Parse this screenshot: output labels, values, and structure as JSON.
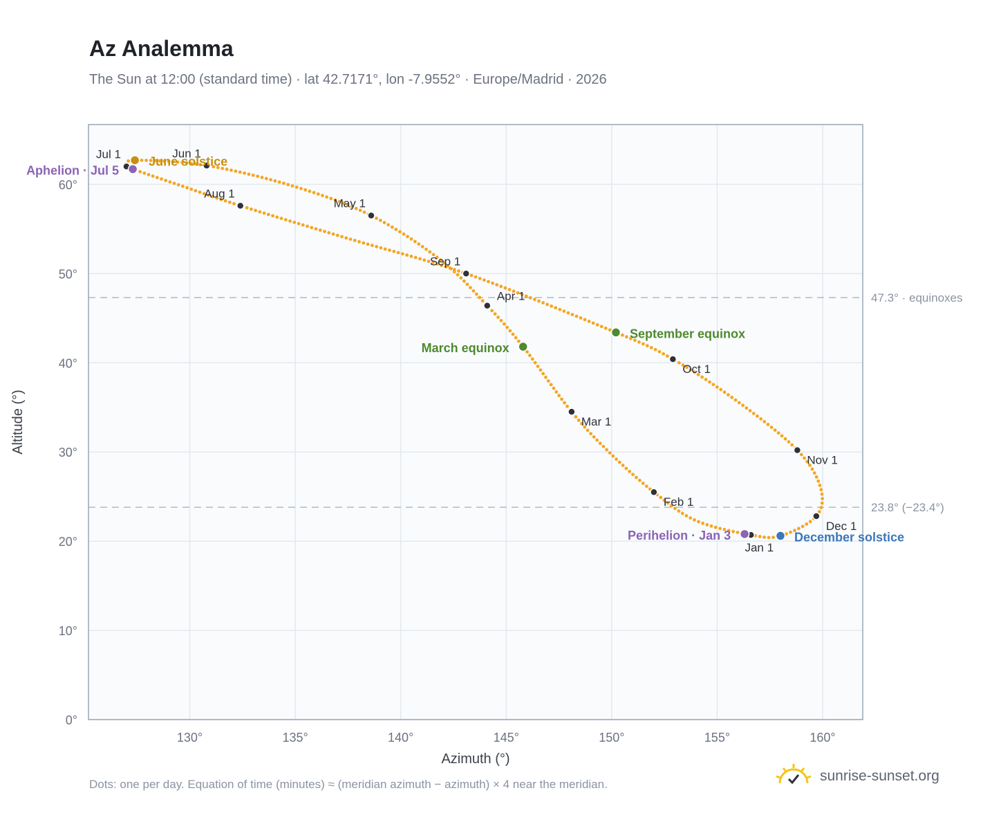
{
  "title": "Az Analemma",
  "subtitle": "The Sun at 12:00 (standard time) · lat 42.7171°, lon -7.9552° · Europe/Madrid · 2026",
  "footnote": "Dots: one per day. Equation of time (minutes) ≈ (meridian azimuth − azimuth) × 4 near the meridian.",
  "brand": {
    "name": "sunrise-sunset.org",
    "icon": "sun-logo-icon"
  },
  "colors": {
    "curve": "#f5a623",
    "month_marker": "#2d3138",
    "equinox": "#4e8a2f",
    "june_solstice": "#c8900e",
    "december_solstice": "#3a78b9",
    "apsis": "#8b64b4",
    "plot_bg": "#f9fbfd",
    "grid": "#e4e9ef",
    "reference_line": "#aebbc8"
  },
  "chart_data": {
    "type": "scatter",
    "title": "Az Analemma",
    "xlabel": "Azimuth (°)",
    "ylabel": "Altitude (°)",
    "xlim": [
      125.2,
      161.9
    ],
    "ylim": [
      0,
      66.7
    ],
    "x_ticks": [
      130,
      135,
      140,
      145,
      150,
      155,
      160
    ],
    "x_tick_labels": [
      "130°",
      "135°",
      "140°",
      "145°",
      "150°",
      "155°",
      "160°"
    ],
    "y_ticks": [
      0,
      10,
      20,
      30,
      40,
      50,
      60
    ],
    "y_tick_labels": [
      "0°",
      "10°",
      "20°",
      "30°",
      "40°",
      "50°",
      "60°"
    ],
    "grid": true,
    "series": [
      {
        "name": "",
        "marker": "one dot per day",
        "anchors": [
          {
            "date": "Jan 1",
            "az": 156.6,
            "alt": 20.7
          },
          {
            "date": "Jan 15",
            "az": 154.0,
            "alt": 22.3
          },
          {
            "date": "Feb 1",
            "az": 152.0,
            "alt": 25.5
          },
          {
            "date": "Feb 15",
            "az": 150.0,
            "alt": 29.7
          },
          {
            "date": "Mar 1",
            "az": 148.1,
            "alt": 34.5
          },
          {
            "date": "Mar 20",
            "az": 145.8,
            "alt": 41.8
          },
          {
            "date": "Apr 1",
            "az": 144.1,
            "alt": 46.4
          },
          {
            "date": "Apr 15",
            "az": 141.9,
            "alt": 51.5
          },
          {
            "date": "May 1",
            "az": 138.6,
            "alt": 56.5
          },
          {
            "date": "May 15",
            "az": 134.9,
            "alt": 59.8
          },
          {
            "date": "Jun 1",
            "az": 130.8,
            "alt": 62.1
          },
          {
            "date": "Jun 21",
            "az": 127.4,
            "alt": 62.7
          },
          {
            "date": "Jul 1",
            "az": 127.0,
            "alt": 62.0
          },
          {
            "date": "Jul 5",
            "az": 127.3,
            "alt": 61.7
          },
          {
            "date": "Jul 15",
            "az": 129.4,
            "alt": 60.0
          },
          {
            "date": "Aug 1",
            "az": 132.4,
            "alt": 57.6
          },
          {
            "date": "Aug 15",
            "az": 137.4,
            "alt": 54.0
          },
          {
            "date": "Sep 1",
            "az": 143.1,
            "alt": 50.0
          },
          {
            "date": "Sep 22",
            "az": 150.2,
            "alt": 43.4
          },
          {
            "date": "Oct 1",
            "az": 152.9,
            "alt": 40.4
          },
          {
            "date": "Oct 15",
            "az": 156.0,
            "alt": 35.6
          },
          {
            "date": "Nov 1",
            "az": 158.8,
            "alt": 30.2
          },
          {
            "date": "Nov 15",
            "az": 159.9,
            "alt": 26.0
          },
          {
            "date": "Dec 1",
            "az": 159.7,
            "alt": 22.8
          },
          {
            "date": "Dec 21",
            "az": 158.0,
            "alt": 20.6
          }
        ]
      }
    ],
    "month_markers": [
      {
        "label": "Jan 1",
        "az": 156.6,
        "alt": 20.7,
        "pos": "below"
      },
      {
        "label": "Feb 1",
        "az": 152.0,
        "alt": 25.5,
        "pos": "right-below"
      },
      {
        "label": "Mar 1",
        "az": 148.1,
        "alt": 34.5,
        "pos": "right-below"
      },
      {
        "label": "Apr 1",
        "az": 144.1,
        "alt": 46.4,
        "pos": "right-above"
      },
      {
        "label": "May 1",
        "az": 138.6,
        "alt": 56.5,
        "pos": "left-above"
      },
      {
        "label": "Jun 1",
        "az": 130.8,
        "alt": 62.1,
        "pos": "left-above"
      },
      {
        "label": "Jul 1",
        "az": 127.0,
        "alt": 62.0,
        "pos": "left-above"
      },
      {
        "label": "Aug 1",
        "az": 132.4,
        "alt": 57.6,
        "pos": "left-above"
      },
      {
        "label": "Sep 1",
        "az": 143.1,
        "alt": 50.0,
        "pos": "left-above"
      },
      {
        "label": "Oct 1",
        "az": 152.9,
        "alt": 40.4,
        "pos": "right-below"
      },
      {
        "label": "Nov 1",
        "az": 158.8,
        "alt": 30.2,
        "pos": "right-below"
      },
      {
        "label": "Dec 1",
        "az": 159.7,
        "alt": 22.8,
        "pos": "right-below"
      }
    ],
    "events": [
      {
        "label": "June solstice",
        "az": 127.4,
        "alt": 62.7,
        "color": "#c8900e",
        "side": "right"
      },
      {
        "label": "Aphelion · Jul 5",
        "az": 127.3,
        "alt": 61.7,
        "color": "#8b64b4",
        "side": "left"
      },
      {
        "label": "March equinox",
        "az": 145.8,
        "alt": 41.8,
        "color": "#4e8a2f",
        "side": "left"
      },
      {
        "label": "September equinox",
        "az": 150.2,
        "alt": 43.4,
        "color": "#4e8a2f",
        "side": "right"
      },
      {
        "label": "Perihelion · Jan 3",
        "az": 156.3,
        "alt": 20.8,
        "color": "#8b64b4",
        "side": "left"
      },
      {
        "label": "December solstice",
        "az": 158.0,
        "alt": 20.6,
        "color": "#3a78b9",
        "side": "right"
      }
    ],
    "reference_lines": [
      {
        "alt": 47.3,
        "label": "47.3° · equinoxes"
      },
      {
        "alt": 23.8,
        "label": "23.8° (−23.4°)"
      }
    ]
  }
}
